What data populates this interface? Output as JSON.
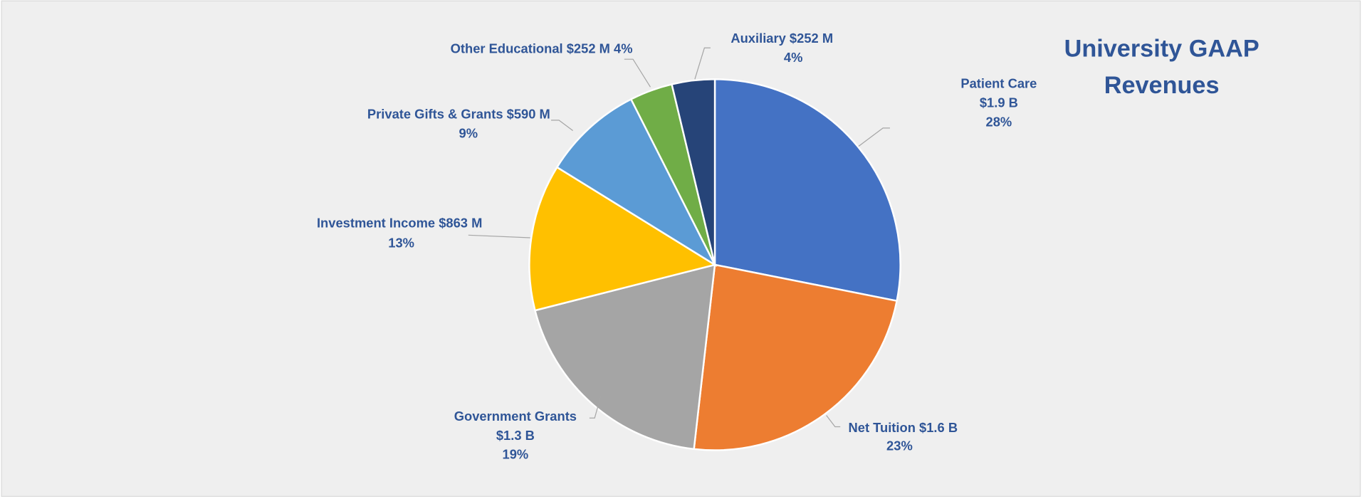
{
  "chart_data": {
    "type": "pie",
    "title_lines": [
      "University GAAP",
      "Revenues"
    ],
    "unit": "$M",
    "start_angle": "top, clockwise",
    "legend": "none (data labels with leader lines)",
    "slices": [
      {
        "name": "Patient Care",
        "value": 1900,
        "percent": 28,
        "color": "#4472C4",
        "label_lines": [
          "Patient Care",
          "$1.9 B",
          "28%"
        ]
      },
      {
        "name": "Net Tuition",
        "value": 1600,
        "percent": 23,
        "color": "#ED7D31",
        "label_lines": [
          "Net Tuition $1.6 B",
          "23%"
        ]
      },
      {
        "name": "Government Grants",
        "value": 1300,
        "percent": 19,
        "color": "#A5A5A5",
        "label_lines": [
          "Government Grants",
          "$1.3 B",
          "19%"
        ]
      },
      {
        "name": "Investment Income",
        "value": 863,
        "percent": 13,
        "color": "#FFC000",
        "label_lines": [
          "Investment Income  $863 M",
          "13%"
        ]
      },
      {
        "name": "Private Gifts & Grants",
        "value": 590,
        "percent": 9,
        "color": "#5B9BD5",
        "label_lines": [
          "Private Gifts & Grants  $590 M",
          "9%"
        ]
      },
      {
        "name": "Other Educational",
        "value": 252,
        "percent": 4,
        "color": "#70AD47",
        "label_lines": [
          "Other Educational  $252 M 4%"
        ]
      },
      {
        "name": "Auxiliary",
        "value": 252,
        "percent": 4,
        "color": "#264478",
        "label_lines": [
          "Auxiliary  $252 M",
          "4%"
        ]
      }
    ]
  },
  "colors": {
    "text": "#2F5597",
    "background": "#EFEFEF"
  }
}
